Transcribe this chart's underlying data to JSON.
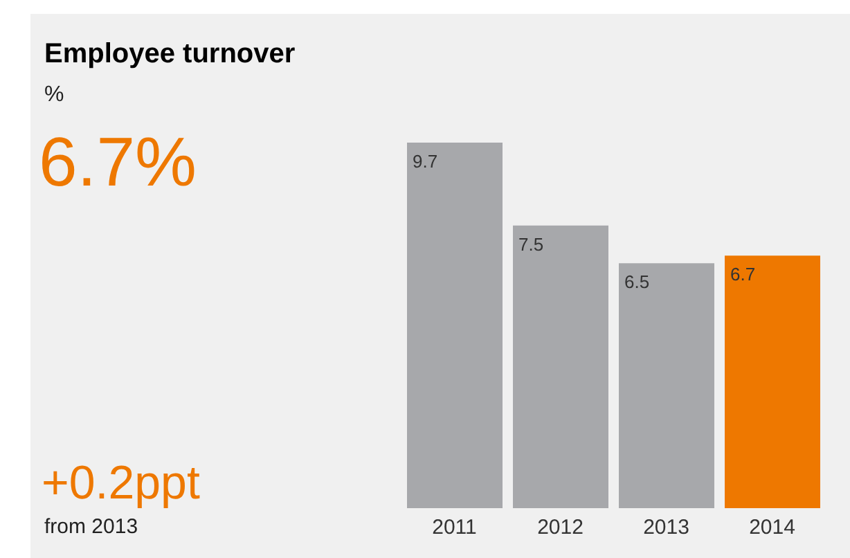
{
  "chart_data": {
    "type": "bar",
    "title": "Employee turnover",
    "subtitle": "%",
    "annotations": [
      "6.7%",
      "+0.2ppt",
      "from 2013"
    ],
    "categories": [
      "2011",
      "2012",
      "2013",
      "2014"
    ],
    "values": [
      9.7,
      7.5,
      6.5,
      6.7
    ],
    "colors": [
      "#a7a8ab",
      "#a7a8ab",
      "#a7a8ab",
      "#ee7800"
    ],
    "data_labels": true,
    "grid": false,
    "legend": false
  }
}
